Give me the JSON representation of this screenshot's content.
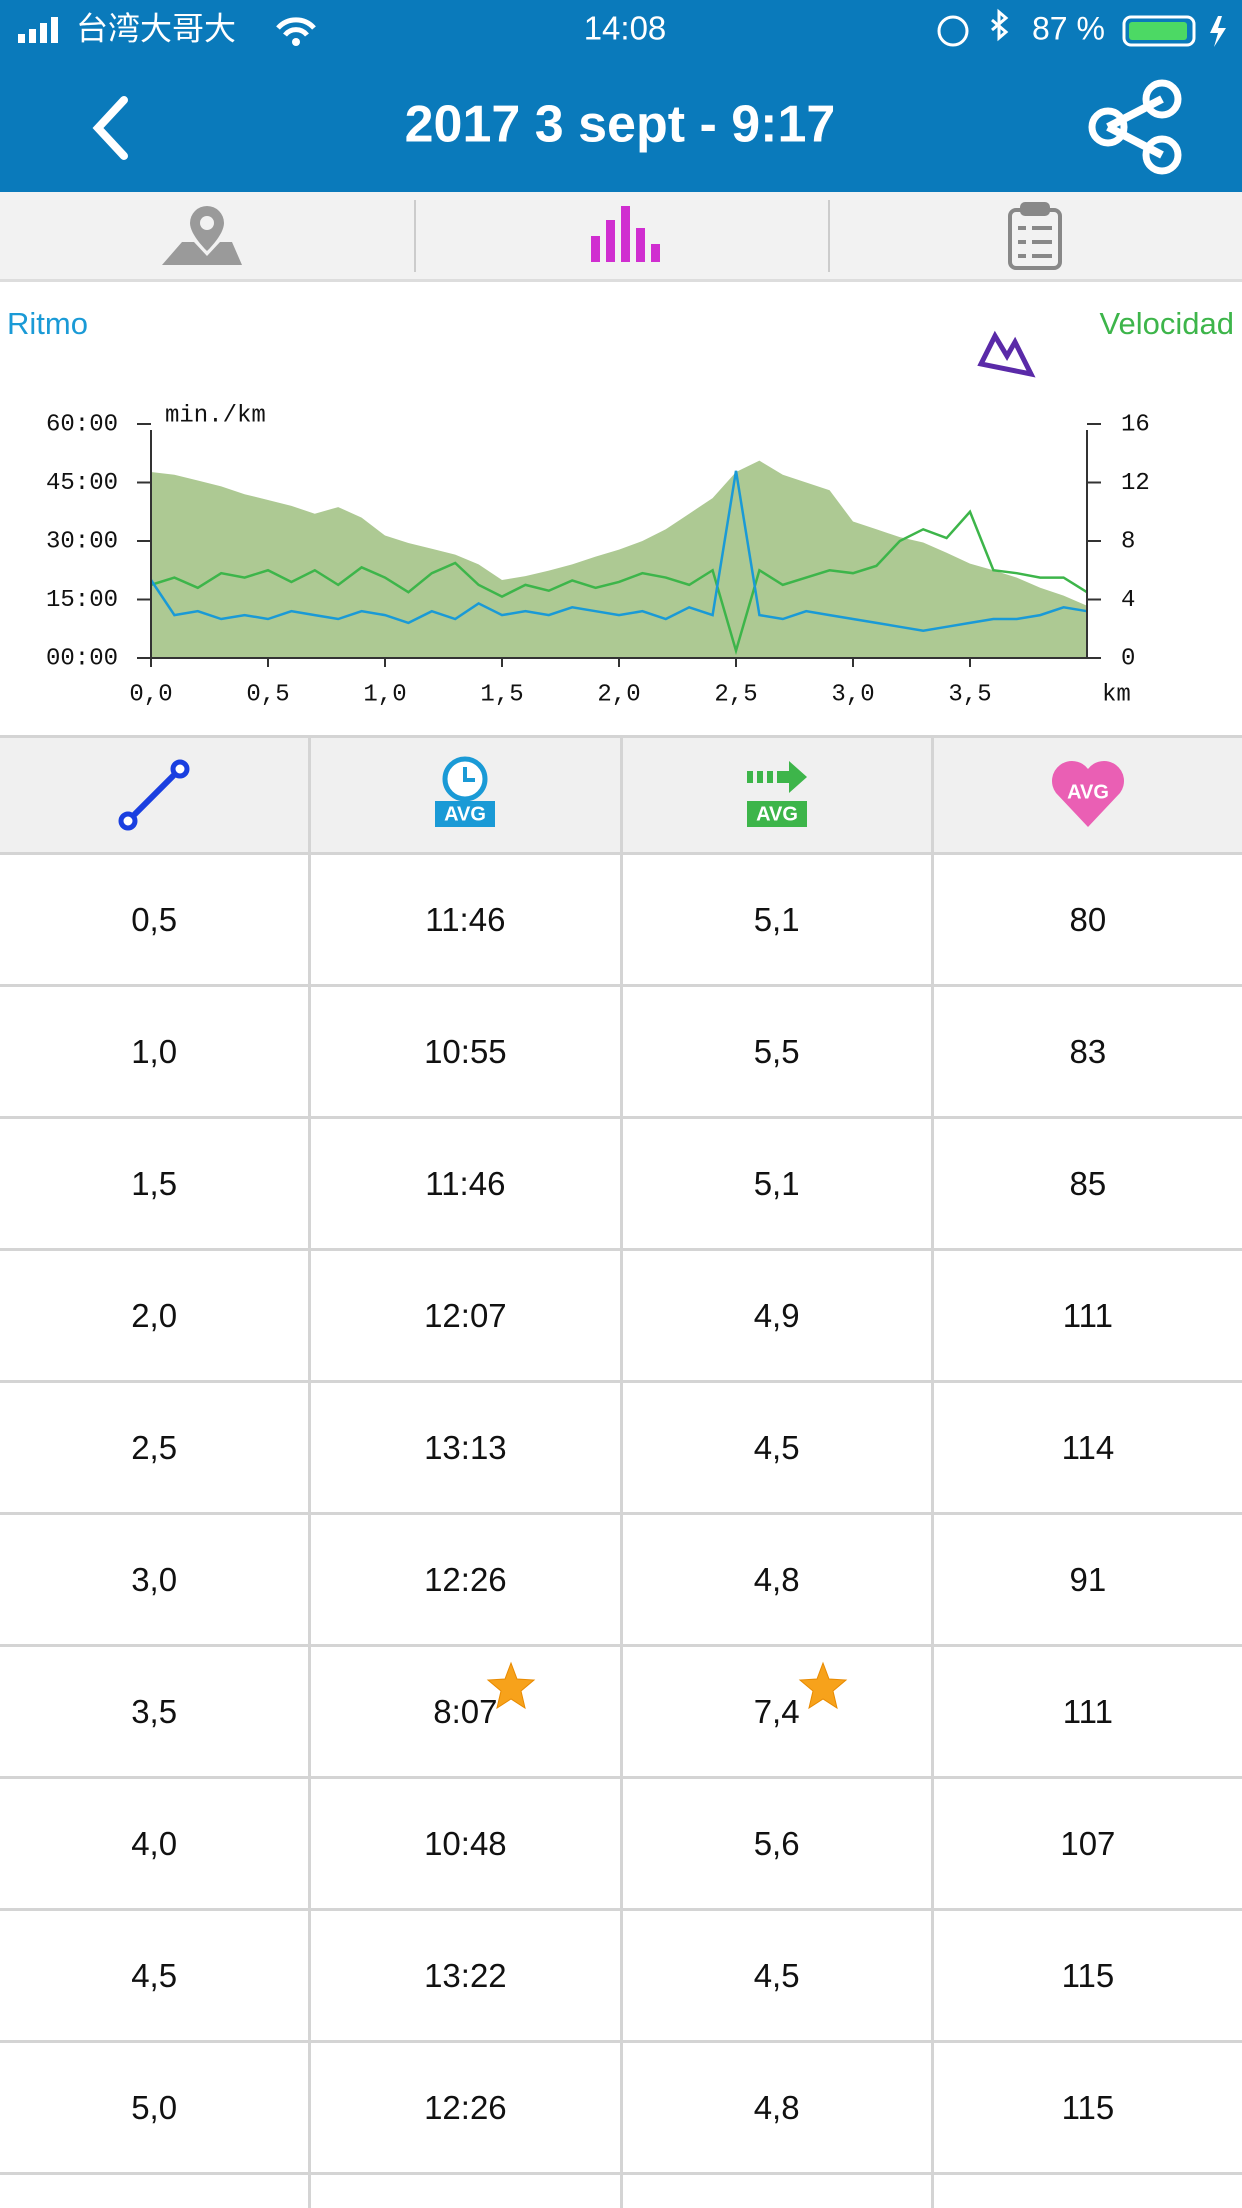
{
  "status_bar": {
    "carrier": "台湾大哥大",
    "time": "14:08",
    "battery": "87 %"
  },
  "header": {
    "title": "2017 3 sept - 9:17"
  },
  "chart_data": {
    "type": "line",
    "y_unit_label": "min./km",
    "x_unit_label": "km",
    "x": [
      0,
      0.1,
      0.2,
      0.3,
      0.4,
      0.5,
      0.6,
      0.7,
      0.8,
      0.9,
      1.0,
      1.1,
      1.2,
      1.3,
      1.4,
      1.5,
      1.6,
      1.7,
      1.8,
      1.9,
      2.0,
      2.1,
      2.2,
      2.3,
      2.4,
      2.5,
      2.6,
      2.7,
      2.8,
      2.9,
      3.0,
      3.1,
      3.2,
      3.3,
      3.4,
      3.5,
      3.6,
      3.7,
      3.8,
      3.9,
      4.0
    ],
    "series": [
      {
        "style": "area",
        "color": "#adc993",
        "axis": "y",
        "values": [
          47.7,
          47,
          45.5,
          44,
          42,
          40.5,
          39,
          37,
          38.7,
          36,
          31.4,
          29.5,
          28,
          26.5,
          24,
          20,
          21,
          22.4,
          24,
          26,
          27.8,
          30,
          33,
          37,
          41,
          47.7,
          50.6,
          47,
          45,
          43,
          35,
          33,
          31,
          29.6,
          27,
          24.2,
          22.5,
          20.6,
          18,
          16,
          13.4
        ]
      },
      {
        "name": "Velocidad",
        "color": "#3db54a",
        "axis": "y2",
        "values": [
          5,
          5.5,
          4.8,
          5.8,
          5.5,
          6,
          5.2,
          6,
          5,
          6.2,
          5.5,
          4.5,
          5.8,
          6.5,
          5,
          4.2,
          5,
          4.6,
          5.3,
          4.8,
          5.2,
          5.8,
          5.5,
          5,
          6,
          0.5,
          6,
          5,
          5.5,
          6,
          5.8,
          6.3,
          8,
          8.8,
          8.2,
          10,
          6,
          5.8,
          5.5,
          5.5,
          4.5
        ]
      },
      {
        "name": "Ritmo",
        "color": "#1a9ad6",
        "axis": "y",
        "values": [
          20,
          11,
          12,
          10,
          11,
          10,
          12,
          11,
          10,
          12,
          11,
          9,
          12,
          10,
          14,
          11,
          12,
          11,
          13,
          12,
          11,
          12,
          10,
          13,
          11,
          48,
          11,
          10,
          12,
          11,
          10,
          9,
          8,
          7,
          8,
          9,
          10,
          10,
          11,
          13,
          12
        ]
      }
    ],
    "xlim": [
      0,
      4
    ],
    "xticks": [
      {
        "value": 0,
        "label": "0,0"
      },
      {
        "value": 0.5,
        "label": "0,5"
      },
      {
        "value": 1,
        "label": "1,0"
      },
      {
        "value": 1.5,
        "label": "1,5"
      },
      {
        "value": 2,
        "label": "2,0"
      },
      {
        "value": 2.5,
        "label": "2,5"
      },
      {
        "value": 3,
        "label": "3,0"
      },
      {
        "value": 3.5,
        "label": "3,5"
      }
    ],
    "ylim": [
      0,
      60
    ],
    "yticks": [
      {
        "value": 0,
        "label": "00:00"
      },
      {
        "value": 15,
        "label": "15:00"
      },
      {
        "value": 30,
        "label": "30:00"
      },
      {
        "value": 45,
        "label": "45:00"
      },
      {
        "value": 60,
        "label": "60:00"
      }
    ],
    "y2lim": [
      0,
      16
    ],
    "y2ticks": [
      0,
      4,
      8,
      12,
      16
    ]
  },
  "table": {
    "badges": [
      "AVG",
      "AVG",
      "AVG"
    ],
    "rows": [
      [
        "0,5",
        "11:46",
        "5,1",
        "80"
      ],
      [
        "1,0",
        "10:55",
        "5,5",
        "83"
      ],
      [
        "1,5",
        "11:46",
        "5,1",
        "85"
      ],
      [
        "2,0",
        "12:07",
        "4,9",
        "111"
      ],
      [
        "2,5",
        "13:13",
        "4,5",
        "114"
      ],
      [
        "3,0",
        "12:26",
        "4,8",
        "91"
      ],
      [
        "3,5",
        "8:07",
        "7,4",
        "111"
      ],
      [
        "4,0",
        "10:48",
        "5,6",
        "107"
      ],
      [
        "4,5",
        "13:22",
        "4,5",
        "115"
      ],
      [
        "5,0",
        "12:26",
        "4,8",
        "115"
      ]
    ]
  }
}
